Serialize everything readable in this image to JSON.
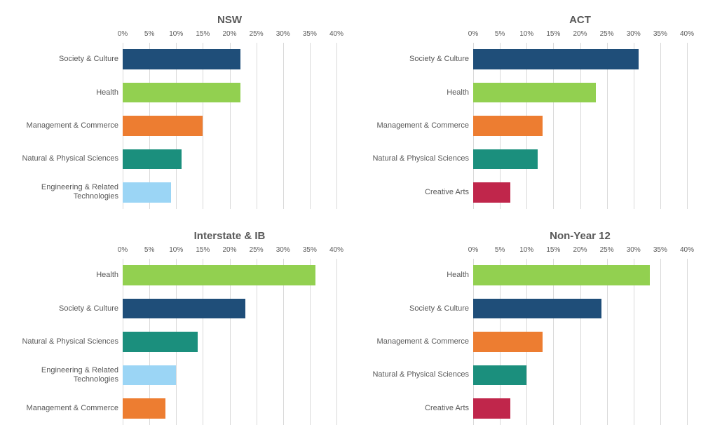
{
  "xmax": 40,
  "xtick_step": 5,
  "grid_color": "#d9d9d9",
  "background_color": "#ffffff",
  "title_fontsize": 15,
  "label_fontsize": 11,
  "tick_fontsize": 10,
  "panels": [
    {
      "title": "NSW",
      "bars": [
        {
          "label": "Society & Culture",
          "value": 22,
          "color": "#1f4e79"
        },
        {
          "label": "Health",
          "value": 22,
          "color": "#92d050"
        },
        {
          "label": "Management & Commerce",
          "value": 15,
          "color": "#ed7d31"
        },
        {
          "label": "Natural & Physical Sciences",
          "value": 11,
          "color": "#1b8f7d"
        },
        {
          "label": "Engineering & Related Technologies",
          "value": 9,
          "color": "#9bd5f5"
        }
      ]
    },
    {
      "title": "ACT",
      "bars": [
        {
          "label": "Society & Culture",
          "value": 31,
          "color": "#1f4e79"
        },
        {
          "label": "Health",
          "value": 23,
          "color": "#92d050"
        },
        {
          "label": "Management & Commerce",
          "value": 13,
          "color": "#ed7d31"
        },
        {
          "label": "Natural & Physical Sciences",
          "value": 12,
          "color": "#1b8f7d"
        },
        {
          "label": "Creative Arts",
          "value": 7,
          "color": "#c0264b"
        }
      ]
    },
    {
      "title": "Interstate & IB",
      "bars": [
        {
          "label": "Health",
          "value": 36,
          "color": "#92d050"
        },
        {
          "label": "Society & Culture",
          "value": 23,
          "color": "#1f4e79"
        },
        {
          "label": "Natural & Physical Sciences",
          "value": 14,
          "color": "#1b8f7d"
        },
        {
          "label": "Engineering & Related Technologies",
          "value": 10,
          "color": "#9bd5f5"
        },
        {
          "label": "Management & Commerce",
          "value": 8,
          "color": "#ed7d31"
        }
      ]
    },
    {
      "title": "Non-Year 12",
      "bars": [
        {
          "label": "Health",
          "value": 33,
          "color": "#92d050"
        },
        {
          "label": "Society & Culture",
          "value": 24,
          "color": "#1f4e79"
        },
        {
          "label": "Management & Commerce",
          "value": 13,
          "color": "#ed7d31"
        },
        {
          "label": "Natural & Physical Sciences",
          "value": 10,
          "color": "#1b8f7d"
        },
        {
          "label": "Creative Arts",
          "value": 7,
          "color": "#c0264b"
        }
      ]
    }
  ]
}
